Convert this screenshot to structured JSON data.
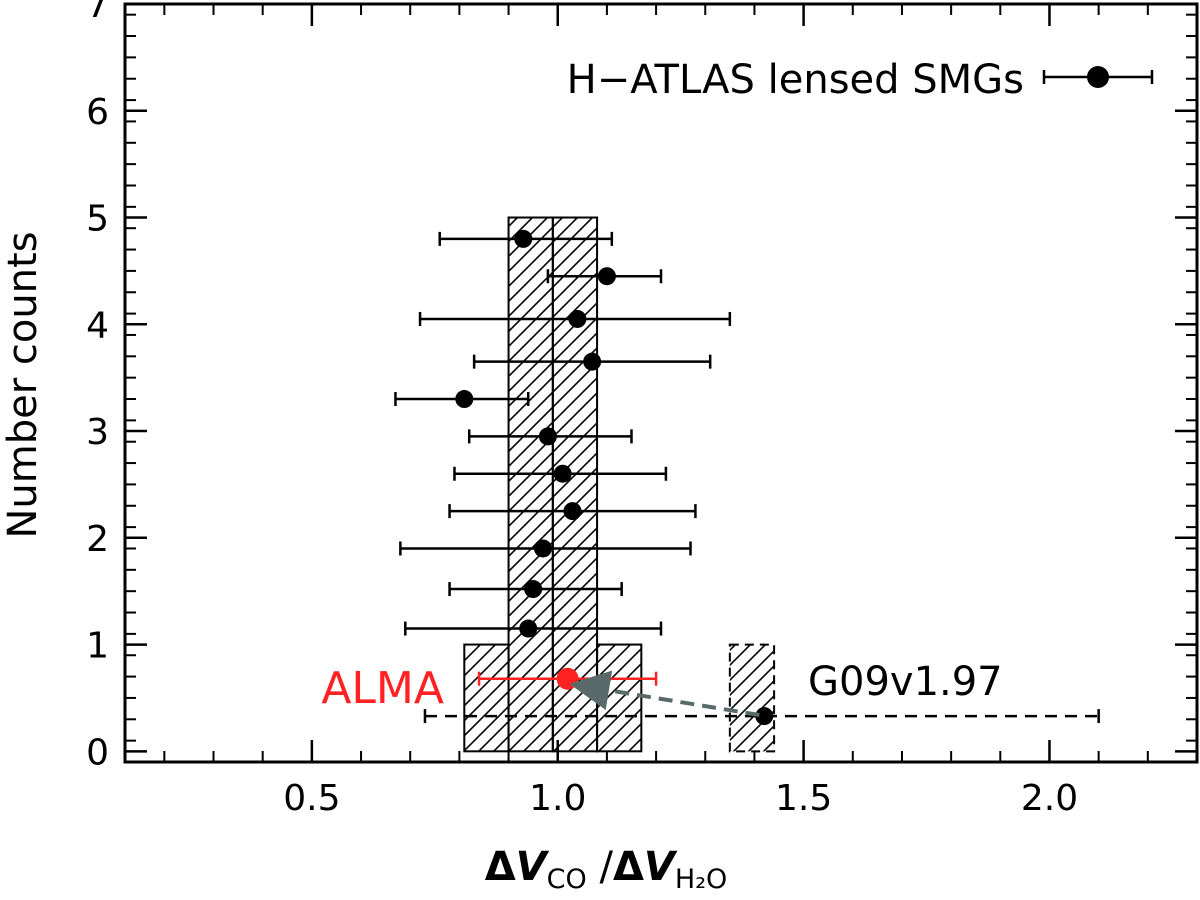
{
  "chart_data": {
    "type": "scatter",
    "xlabel": {
      "delta1": "Δ",
      "v1": "V",
      "sub1": "CO",
      "slash": " /",
      "delta2": "Δ",
      "v2": "V",
      "sub2": "H₂O"
    },
    "ylabel": "Number counts",
    "xlim": [
      0.12,
      2.3
    ],
    "ylim": [
      -0.1,
      7.0
    ],
    "x_ticks": [
      0.5,
      1.0,
      1.5,
      2.0
    ],
    "x_tick_labels": [
      "0.5",
      "1.0",
      "1.5",
      "2.0"
    ],
    "y_ticks": [
      0,
      1,
      2,
      3,
      4,
      5,
      6,
      7
    ],
    "y_tick_labels": [
      "0",
      "1",
      "2",
      "3",
      "4",
      "5",
      "6",
      "7"
    ],
    "grid": false,
    "legend": {
      "label": "H−ATLAS lensed SMGs",
      "position": "top-right"
    },
    "histogram": {
      "bars": [
        {
          "x0": 0.81,
          "x1": 0.9,
          "count": 1
        },
        {
          "x0": 0.9,
          "x1": 0.99,
          "count": 5
        },
        {
          "x0": 0.99,
          "x1": 1.08,
          "count": 5
        },
        {
          "x0": 1.08,
          "x1": 1.17,
          "count": 1
        }
      ],
      "outlier_bar": {
        "x0": 1.35,
        "x1": 1.44,
        "count": 1
      }
    },
    "series": [
      {
        "name": "H−ATLAS lensed SMGs",
        "points": [
          {
            "x": 0.93,
            "y": 4.8,
            "xerr_lo": 0.76,
            "xerr_hi": 1.11
          },
          {
            "x": 1.1,
            "y": 4.45,
            "xerr_lo": 0.98,
            "xerr_hi": 1.21
          },
          {
            "x": 1.04,
            "y": 4.05,
            "xerr_lo": 0.72,
            "xerr_hi": 1.35
          },
          {
            "x": 1.07,
            "y": 3.65,
            "xerr_lo": 0.83,
            "xerr_hi": 1.31
          },
          {
            "x": 0.81,
            "y": 3.3,
            "xerr_lo": 0.67,
            "xerr_hi": 0.94
          },
          {
            "x": 0.98,
            "y": 2.95,
            "xerr_lo": 0.82,
            "xerr_hi": 1.15
          },
          {
            "x": 1.01,
            "y": 2.6,
            "xerr_lo": 0.79,
            "xerr_hi": 1.22
          },
          {
            "x": 1.03,
            "y": 2.25,
            "xerr_lo": 0.78,
            "xerr_hi": 1.28
          },
          {
            "x": 0.97,
            "y": 1.9,
            "xerr_lo": 0.68,
            "xerr_hi": 1.27
          },
          {
            "x": 0.95,
            "y": 1.52,
            "xerr_lo": 0.78,
            "xerr_hi": 1.13
          },
          {
            "x": 0.94,
            "y": 1.15,
            "xerr_lo": 0.69,
            "xerr_hi": 1.21
          }
        ]
      },
      {
        "name": "ALMA",
        "color": "#ff2222",
        "points": [
          {
            "x": 1.02,
            "y": 0.68,
            "xerr_lo": 0.84,
            "xerr_hi": 1.2
          }
        ]
      },
      {
        "name": "G09v1.97",
        "points": [
          {
            "x": 1.42,
            "y": 0.33,
            "xerr_lo": 0.73,
            "xerr_hi": 2.1
          }
        ]
      }
    ],
    "annotations": {
      "alma_label": "ALMA",
      "g09_label": "G09v1.97"
    },
    "arrow": {
      "from": {
        "x": 1.41,
        "y": 0.34
      },
      "to": {
        "x": 1.04,
        "y": 0.62
      },
      "color": "#5a6a6a"
    }
  }
}
